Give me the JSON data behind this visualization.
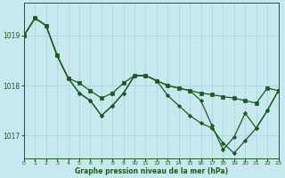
{
  "background_color": "#c8e8f0",
  "grid_color": "#aad4dc",
  "line_color": "#1a5c1a",
  "xlabel": "Graphe pression niveau de la mer (hPa)",
  "xlim": [
    0,
    23
  ],
  "ylim": [
    1016.55,
    1019.65
  ],
  "yticks": [
    1017,
    1018,
    1019
  ],
  "xticks": [
    0,
    1,
    2,
    3,
    4,
    5,
    6,
    7,
    8,
    9,
    10,
    11,
    12,
    13,
    14,
    15,
    16,
    17,
    18,
    19,
    20,
    21,
    22,
    23
  ],
  "line1_x": [
    0,
    1,
    2,
    3,
    4,
    5,
    6,
    7,
    8,
    9,
    10,
    11,
    12,
    13,
    14,
    15,
    16,
    17,
    18,
    19,
    20,
    21,
    22,
    23
  ],
  "line1_y": [
    1019.0,
    1019.35,
    1019.2,
    1018.6,
    1018.15,
    1018.05,
    1017.9,
    1017.75,
    1017.85,
    1018.05,
    1018.2,
    1018.2,
    1018.1,
    1018.0,
    1017.95,
    1017.9,
    1017.85,
    1017.82,
    1017.78,
    1017.75,
    1017.7,
    1017.65,
    1017.95,
    1017.9
  ],
  "line2_x": [
    0,
    1,
    2,
    3,
    4,
    5,
    6,
    7,
    8,
    9,
    10,
    11,
    12,
    13,
    14,
    15,
    16,
    17,
    18,
    19,
    20,
    21,
    22,
    23
  ],
  "line2_y": [
    1019.0,
    1019.35,
    1019.2,
    1018.6,
    1018.15,
    1017.85,
    1017.7,
    1017.4,
    1017.6,
    1017.85,
    1018.2,
    1018.2,
    1018.1,
    1017.8,
    1017.6,
    1017.4,
    1017.25,
    1017.15,
    1016.85,
    1016.65,
    1016.9,
    1017.15,
    1017.5,
    1017.9
  ],
  "line3_x": [
    0,
    1,
    2,
    3,
    4,
    5,
    6,
    7,
    8,
    9,
    10,
    11,
    12,
    13,
    14,
    15,
    16,
    17,
    18,
    19,
    20,
    21,
    22,
    23
  ],
  "line3_y": [
    1019.0,
    1019.35,
    1019.2,
    1018.6,
    1018.15,
    1017.85,
    1017.7,
    1017.4,
    1017.6,
    1017.85,
    1018.2,
    1018.2,
    1018.1,
    1018.0,
    1017.95,
    1017.9,
    1017.7,
    1017.2,
    1016.72,
    1016.97,
    1017.45,
    1017.15,
    1017.5,
    1017.9
  ]
}
